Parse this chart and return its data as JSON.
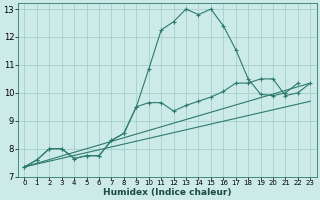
{
  "xlabel": "Humidex (Indice chaleur)",
  "bg_color": "#cceae7",
  "grid_color": "#aad4d0",
  "line_color": "#2d7a6e",
  "xlim": [
    -0.5,
    23.5
  ],
  "ylim": [
    7,
    13.2
  ],
  "xticks": [
    0,
    1,
    2,
    3,
    4,
    5,
    6,
    7,
    8,
    9,
    10,
    11,
    12,
    13,
    14,
    15,
    16,
    17,
    18,
    19,
    20,
    21,
    22,
    23
  ],
  "yticks": [
    7,
    8,
    9,
    10,
    11,
    12,
    13
  ],
  "curve1_x": [
    0,
    1,
    2,
    3,
    4,
    5,
    6,
    7,
    8,
    9,
    10,
    11,
    12,
    13,
    14,
    15,
    16,
    17,
    18,
    19,
    20,
    21,
    22,
    23
  ],
  "curve1_y": [
    7.35,
    7.6,
    8.0,
    8.0,
    7.65,
    7.75,
    7.75,
    8.3,
    8.55,
    9.5,
    10.85,
    12.25,
    12.55,
    13.0,
    12.8,
    13.0,
    12.4,
    11.55,
    10.5,
    9.95,
    9.9,
    10.0,
    10.35,
    null
  ],
  "curve2_x": [
    0,
    1,
    2,
    3,
    4,
    5,
    6,
    7,
    8,
    9,
    10,
    11,
    12,
    13,
    14,
    15,
    16,
    17,
    18,
    19,
    20,
    21,
    22,
    23
  ],
  "curve2_y": [
    7.35,
    7.6,
    8.0,
    8.0,
    7.65,
    7.75,
    7.75,
    8.3,
    8.55,
    9.5,
    9.65,
    9.65,
    9.35,
    9.55,
    9.7,
    9.85,
    10.05,
    10.35,
    10.35,
    10.5,
    10.5,
    9.9,
    10.0,
    10.35
  ],
  "line3_x": [
    0,
    23
  ],
  "line3_y": [
    7.35,
    10.35
  ],
  "line4_x": [
    0,
    23
  ],
  "line4_y": [
    7.35,
    9.7
  ]
}
